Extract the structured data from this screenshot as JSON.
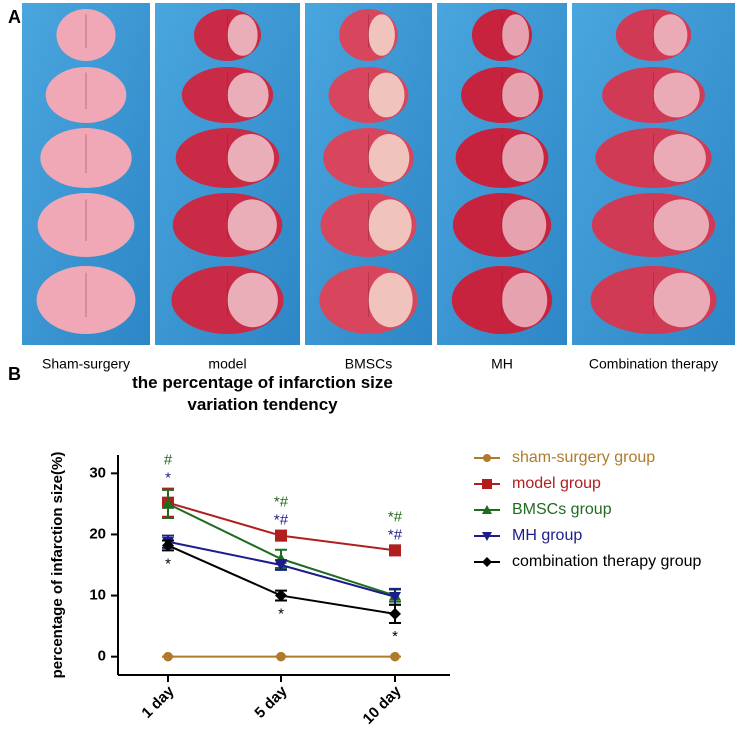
{
  "panel_labels": [
    "A",
    "B"
  ],
  "photo_labels": [
    "Sham-surgery",
    "model",
    "BMSCs",
    "MH",
    "Combination therapy"
  ],
  "chart_data": {
    "type": "line",
    "title": "the percentage of infarction size variation tendency",
    "y_label": "percentage of infarction size(%)",
    "categories": [
      "1 day",
      "5 day",
      "10 day"
    ],
    "ylim": [
      -3,
      33
    ],
    "yticks": [
      0,
      10,
      20,
      30
    ],
    "series": [
      {
        "name": "sham-surgery group",
        "color": "#b07a2a",
        "marker": "circle",
        "values": [
          0,
          0,
          0
        ],
        "errors": [
          0,
          0,
          0
        ]
      },
      {
        "name": "model group",
        "color": "#b01e1e",
        "marker": "square",
        "values": [
          25.2,
          19.8,
          17.4
        ],
        "errors": [
          2.3,
          0.8,
          0.8
        ]
      },
      {
        "name": "BMSCs group",
        "color": "#1f6b1f",
        "marker": "triangle-up",
        "values": [
          25,
          16,
          10
        ],
        "errors": [
          2.3,
          1.5,
          1
        ]
      },
      {
        "name": "MH group",
        "color": "#1c1c8a",
        "marker": "triangle-down",
        "values": [
          18.8,
          15,
          9.8
        ],
        "errors": [
          1,
          0.8,
          1.3
        ]
      },
      {
        "name": "combination therapy group",
        "color": "#000000",
        "marker": "diamond",
        "values": [
          18.2,
          10,
          7
        ],
        "errors": [
          0.8,
          0.8,
          1.5
        ]
      }
    ],
    "annotations": [
      {
        "text": "#",
        "series": 2,
        "category": 0
      },
      {
        "text": "*",
        "series": 3,
        "category": 0
      },
      {
        "text": "*",
        "series": 4,
        "category": 0
      },
      {
        "text": "*#",
        "series": 2,
        "category": 1
      },
      {
        "text": "*#",
        "series": 3,
        "category": 1
      },
      {
        "text": "*",
        "series": 4,
        "category": 1
      },
      {
        "text": "*#",
        "series": 2,
        "category": 2
      },
      {
        "text": "*#",
        "series": 3,
        "category": 2
      },
      {
        "text": "*",
        "series": 4,
        "category": 2
      }
    ]
  }
}
